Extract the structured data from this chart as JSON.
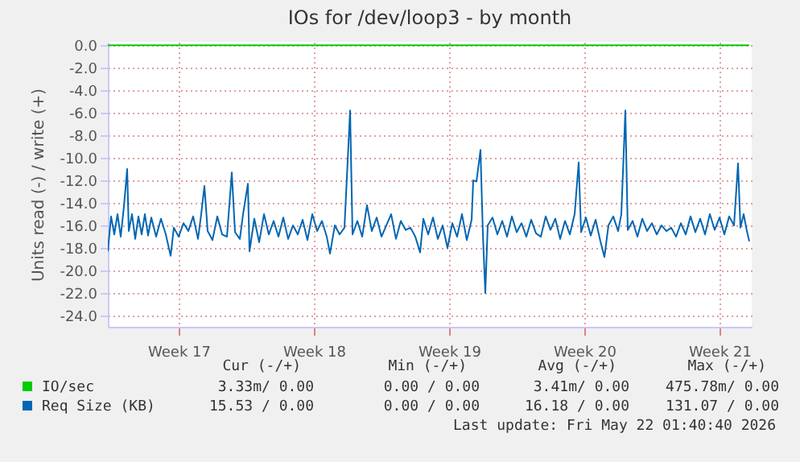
{
  "chart_data": {
    "type": "line",
    "title": "IOs for /dev/loop3 - by month",
    "ylabel": "Units read (-) / write (+)",
    "xlim": [
      "2026-04-19T20:00",
      "2026-05-23T04:00"
    ],
    "ylim": [
      -25,
      0.3
    ],
    "xticks": [
      {
        "value": "2026-04-23T12:00",
        "label": "Week 17"
      },
      {
        "value": "2026-04-30T12:00",
        "label": "Week 18"
      },
      {
        "value": "2026-05-07T12:00",
        "label": "Week 19"
      },
      {
        "value": "2026-05-14T12:00",
        "label": "Week 20"
      },
      {
        "value": "2026-05-21T12:00",
        "label": "Week 21"
      }
    ],
    "yticks": [
      {
        "value": 0,
        "label": "0.0"
      },
      {
        "value": -2,
        "label": "-2.0"
      },
      {
        "value": -4,
        "label": "-4.0"
      },
      {
        "value": -6,
        "label": "-6.0"
      },
      {
        "value": -8,
        "label": "-8.0"
      },
      {
        "value": -10,
        "label": "-10.0"
      },
      {
        "value": -12,
        "label": "-12.0"
      },
      {
        "value": -14,
        "label": "-14.0"
      },
      {
        "value": -16,
        "label": "-16.0"
      },
      {
        "value": -18,
        "label": "-18.0"
      },
      {
        "value": -20,
        "label": "-20.0"
      },
      {
        "value": -22,
        "label": "-22.0"
      },
      {
        "value": -24,
        "label": "-24.0"
      }
    ],
    "grid": true,
    "legend": "bottom left",
    "line_style": "solid",
    "marker": "none",
    "series": [
      {
        "name": "IO/sec",
        "color": "#00cc00",
        "x": [
          "2026-04-19T20:00",
          "2026-05-23T01:00"
        ],
        "values": [
          0,
          0
        ]
      },
      {
        "name": "Req Size (KB)",
        "color": "#0066b3",
        "x": [
          "2026-04-19T20:00",
          "2026-04-20T00:00",
          "2026-04-20T04:00",
          "2026-04-20T08:00",
          "2026-04-20T12:00",
          "2026-04-20T16:00",
          "2026-04-20T20:00",
          "2026-04-20T22:00",
          "2026-04-21T02:00",
          "2026-04-21T06:00",
          "2026-04-21T10:00",
          "2026-04-21T14:00",
          "2026-04-21T18:00",
          "2026-04-21T22:00",
          "2026-04-22T02:00",
          "2026-04-22T08:00",
          "2026-04-22T14:00",
          "2026-04-22T20:00",
          "2026-04-23T02:00",
          "2026-04-23T06:00",
          "2026-04-23T12:00",
          "2026-04-23T18:00",
          "2026-04-24T00:00",
          "2026-04-24T06:00",
          "2026-04-24T12:00",
          "2026-04-24T16:00",
          "2026-04-24T20:00",
          "2026-04-25T00:00",
          "2026-04-25T06:00",
          "2026-04-25T12:00",
          "2026-04-25T18:00",
          "2026-04-26T00:00",
          "2026-04-26T06:00",
          "2026-04-26T10:00",
          "2026-04-26T16:00",
          "2026-04-26T20:00",
          "2026-04-27T02:00",
          "2026-04-27T04:00",
          "2026-04-27T10:00",
          "2026-04-27T16:00",
          "2026-04-27T22:00",
          "2026-04-28T04:00",
          "2026-04-28T10:00",
          "2026-04-28T16:00",
          "2026-04-28T22:00",
          "2026-04-29T04:00",
          "2026-04-29T10:00",
          "2026-04-29T16:00",
          "2026-04-29T22:00",
          "2026-04-30T04:00",
          "2026-04-30T10:00",
          "2026-04-30T16:00",
          "2026-04-30T22:00",
          "2026-05-01T04:00",
          "2026-05-01T08:00",
          "2026-05-01T14:00",
          "2026-05-01T20:00",
          "2026-05-02T02:00",
          "2026-05-02T09:00",
          "2026-05-02T12:00",
          "2026-05-02T18:00",
          "2026-05-03T00:00",
          "2026-05-03T06:00",
          "2026-05-03T12:00",
          "2026-05-03T18:00",
          "2026-05-04T00:00",
          "2026-05-04T06:00",
          "2026-05-04T12:00",
          "2026-05-04T18:00",
          "2026-05-05T00:00",
          "2026-05-05T06:00",
          "2026-05-05T12:00",
          "2026-05-05T18:00",
          "2026-05-06T00:00",
          "2026-05-06T04:00",
          "2026-05-06T10:00",
          "2026-05-06T16:00",
          "2026-05-06T22:00",
          "2026-05-07T04:00",
          "2026-05-07T10:00",
          "2026-05-07T16:00",
          "2026-05-07T22:00",
          "2026-05-08T04:00",
          "2026-05-08T10:00",
          "2026-05-08T16:00",
          "2026-05-08T18:00",
          "2026-05-08T22:00",
          "2026-05-09T03:00",
          "2026-05-09T06:00",
          "2026-05-09T09:00",
          "2026-05-09T12:00",
          "2026-05-09T18:00",
          "2026-05-10T00:00",
          "2026-05-10T06:00",
          "2026-05-10T12:00",
          "2026-05-10T18:00",
          "2026-05-11T00:00",
          "2026-05-11T06:00",
          "2026-05-11T12:00",
          "2026-05-11T18:00",
          "2026-05-12T00:00",
          "2026-05-12T06:00",
          "2026-05-12T12:00",
          "2026-05-12T18:00",
          "2026-05-13T00:00",
          "2026-05-13T06:00",
          "2026-05-13T12:00",
          "2026-05-13T18:00",
          "2026-05-14T00:00",
          "2026-05-14T05:00",
          "2026-05-14T08:00",
          "2026-05-14T14:00",
          "2026-05-14T20:00",
          "2026-05-15T02:00",
          "2026-05-15T08:00",
          "2026-05-15T13:00",
          "2026-05-15T18:00",
          "2026-05-16T00:00",
          "2026-05-16T06:00",
          "2026-05-16T10:00",
          "2026-05-16T15:00",
          "2026-05-16T18:00",
          "2026-05-17T00:00",
          "2026-05-17T06:00",
          "2026-05-17T12:00",
          "2026-05-17T18:00",
          "2026-05-18T00:00",
          "2026-05-18T06:00",
          "2026-05-18T12:00",
          "2026-05-18T18:00",
          "2026-05-19T00:00",
          "2026-05-19T06:00",
          "2026-05-19T12:00",
          "2026-05-19T18:00",
          "2026-05-20T00:00",
          "2026-05-20T06:00",
          "2026-05-20T12:00",
          "2026-05-20T18:00",
          "2026-05-21T00:00",
          "2026-05-21T06:00",
          "2026-05-21T12:00",
          "2026-05-21T18:00",
          "2026-05-22T00:00",
          "2026-05-22T06:00",
          "2026-05-22T11:00",
          "2026-05-22T14:00",
          "2026-05-22T18:00",
          "2026-05-22T22:00",
          "2026-05-23T01:00"
        ],
        "values": [
          -18.3,
          -15.2,
          -16.8,
          -15.0,
          -17.0,
          -14.3,
          -11.0,
          -16.5,
          -15.0,
          -17.2,
          -15.2,
          -16.8,
          -15.0,
          -16.9,
          -15.3,
          -17.0,
          -15.4,
          -16.8,
          -18.7,
          -16.2,
          -17.0,
          -15.8,
          -16.5,
          -15.2,
          -17.2,
          -15.0,
          -12.5,
          -16.5,
          -17.3,
          -15.2,
          -16.8,
          -17.0,
          -11.3,
          -16.6,
          -17.2,
          -15.0,
          -12.3,
          -18.3,
          -15.4,
          -17.5,
          -15.0,
          -16.8,
          -15.6,
          -17.0,
          -15.3,
          -17.2,
          -16.0,
          -16.8,
          -15.5,
          -17.3,
          -15.0,
          -16.5,
          -15.6,
          -17.0,
          -18.5,
          -16.0,
          -16.8,
          -16.2,
          -5.8,
          -16.8,
          -15.6,
          -17.0,
          -14.2,
          -16.5,
          -15.3,
          -17.0,
          -16.0,
          -15.0,
          -17.2,
          -15.6,
          -16.4,
          -16.2,
          -17.0,
          -18.4,
          -15.4,
          -16.8,
          -15.3,
          -17.2,
          -16.0,
          -18.0,
          -15.8,
          -17.0,
          -15.0,
          -17.3,
          -15.5,
          -12.0,
          -12.1,
          -9.3,
          -16.8,
          -22.0,
          -16.0,
          -15.3,
          -16.8,
          -15.6,
          -17.0,
          -15.2,
          -16.6,
          -15.8,
          -17.0,
          -15.5,
          -16.7,
          -17.0,
          -15.2,
          -16.4,
          -15.4,
          -17.2,
          -15.6,
          -16.8,
          -15.0,
          -10.4,
          -16.6,
          -15.3,
          -16.9,
          -15.5,
          -17.4,
          -18.8,
          -16.0,
          -15.2,
          -16.5,
          -15.0,
          -5.8,
          -16.4,
          -15.6,
          -17.0,
          -15.4,
          -16.5,
          -15.8,
          -16.8,
          -16.0,
          -16.5,
          -16.2,
          -17.0,
          -15.8,
          -16.8,
          -15.2,
          -16.6,
          -15.4,
          -16.8,
          -15.0,
          -16.4,
          -15.3,
          -16.8,
          -15.2,
          -16.0,
          -10.5,
          -16.2,
          -15.0,
          -16.5,
          -17.4
        ]
      }
    ],
    "annotations": [
      "Cur (-/+)",
      "Min (-/+)",
      "Avg (-/+)",
      "Max (-/+)",
      "3.33m/ 0.00",
      "0.00 / 0.00",
      "3.41m/ 0.00",
      "475.78m/ 0.00",
      "15.53 / 0.00",
      "0.00 / 0.00",
      "16.18 / 0.00",
      "131.07 / 0.00",
      "Last update: Fri May 22 01:40:40 2026"
    ]
  }
}
